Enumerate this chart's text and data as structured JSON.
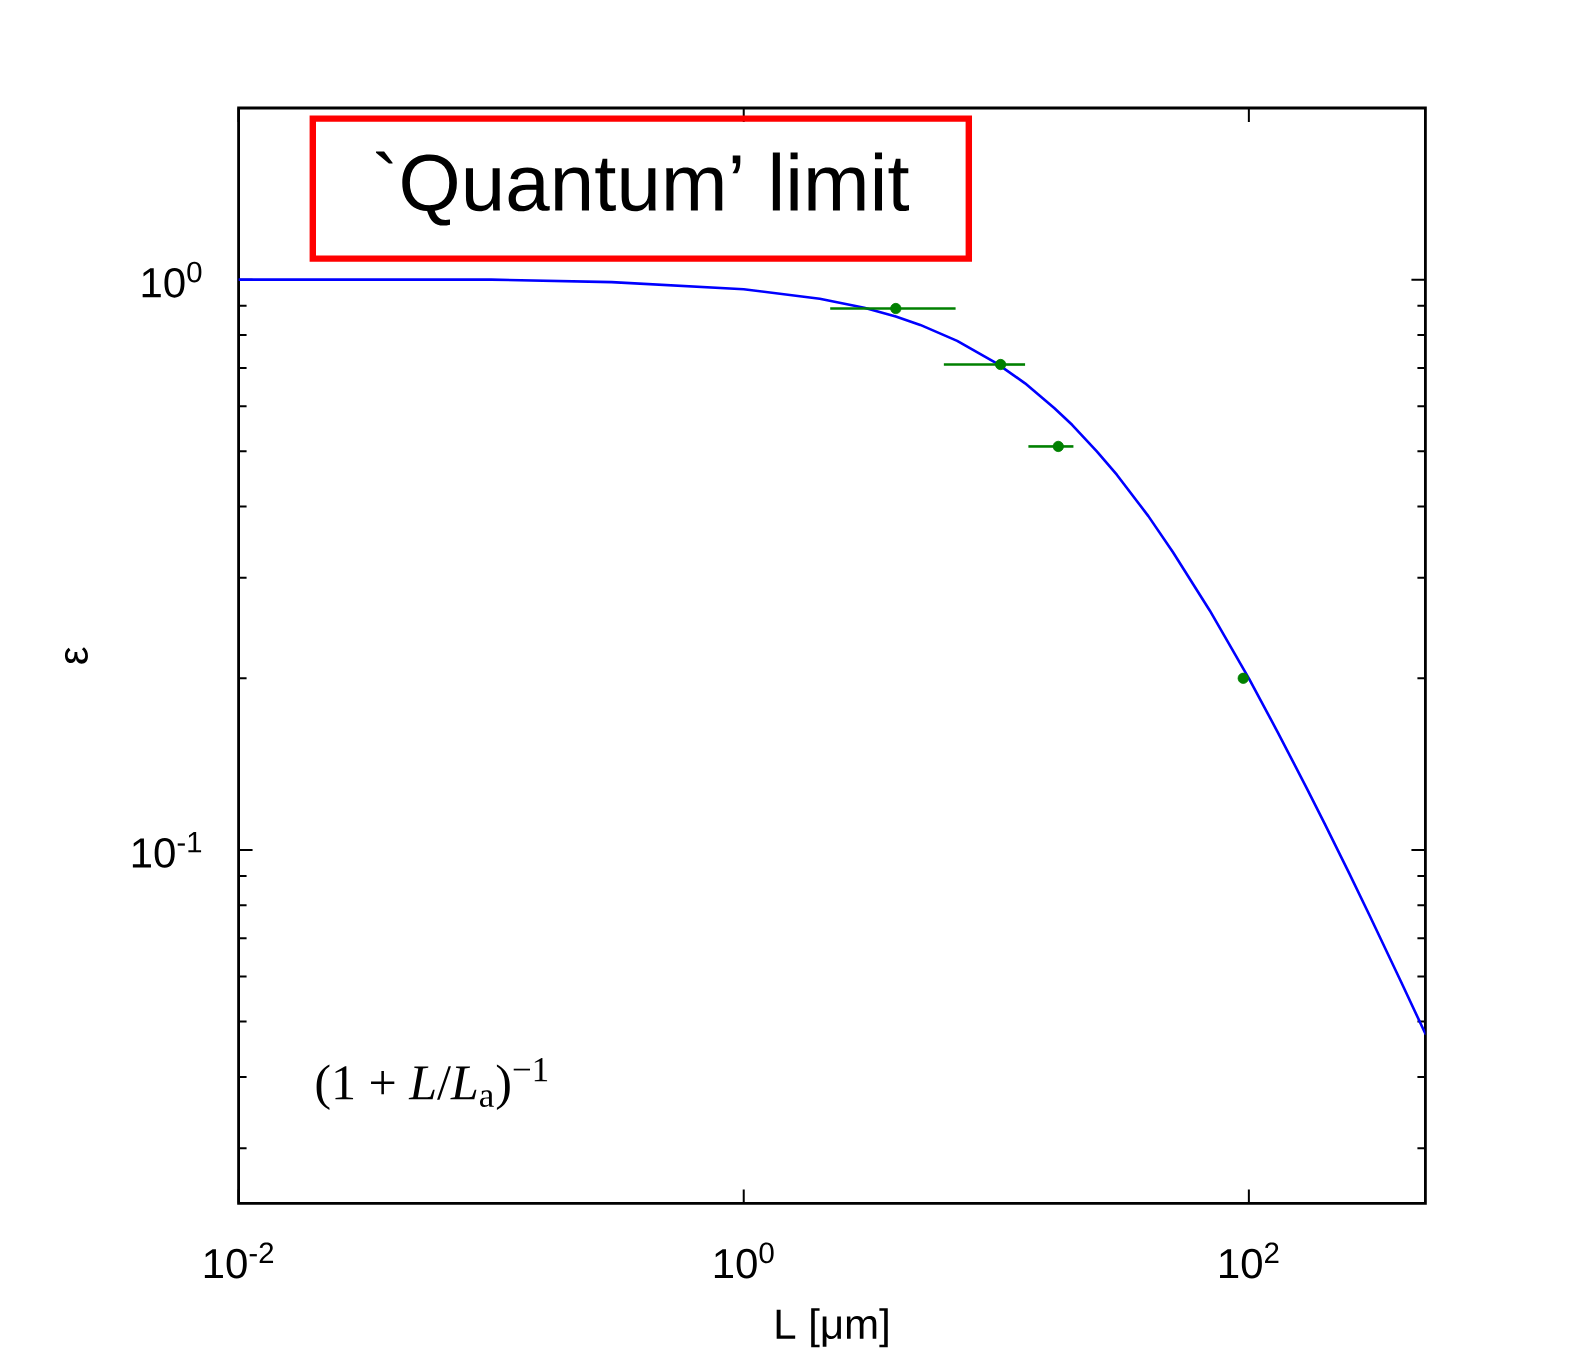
{
  "chart_data": {
    "type": "line",
    "log": "xy",
    "xlabel": "L [μm]",
    "ylabel": "ε",
    "xlim": [
      0.01,
      500
    ],
    "ylim": [
      0.024,
      2
    ],
    "xticks": [
      {
        "value": 0.01,
        "label": "10$^{-2}$"
      },
      {
        "value": 1,
        "label": "10$^{0}$"
      },
      {
        "value": 100,
        "label": "10$^{2}$"
      }
    ],
    "yticks": [
      {
        "value": 0.1,
        "label": "10$^{-1}$"
      },
      {
        "value": 1,
        "label": "10$^{0}$"
      }
    ],
    "annotations": [
      "`Quantum’ limit",
      "(1 + *L*/*L*$_{a}$)$^{−1}$"
    ],
    "series": [
      {
        "color": "#0000ff",
        "marker": "none",
        "line_style": "solid",
        "x": [
          0.01,
          0.1,
          0.3,
          1,
          2,
          3,
          4,
          5,
          7,
          10,
          13,
          17,
          20,
          25,
          30,
          40,
          50,
          70,
          100,
          130,
          170,
          200,
          250,
          300,
          400,
          500
        ],
        "values": [
          1.0,
          1.0,
          0.99,
          0.962,
          0.926,
          0.893,
          0.862,
          0.833,
          0.781,
          0.714,
          0.658,
          0.595,
          0.556,
          0.5,
          0.455,
          0.385,
          0.333,
          0.263,
          0.2,
          0.161,
          0.128,
          0.111,
          0.0909,
          0.0769,
          0.0588,
          0.0476
        ]
      },
      {
        "type": "scatter",
        "color": "#008000",
        "marker": "circle",
        "x": [
          4.0,
          10.4,
          17.6,
          95
        ],
        "values": [
          0.89,
          0.71,
          0.51,
          0.2
        ],
        "xerrors": [
          [
            2.2,
            6.9
          ],
          [
            6.2,
            13
          ],
          [
            13.4,
            20.2
          ],
          null
        ]
      }
    ]
  }
}
